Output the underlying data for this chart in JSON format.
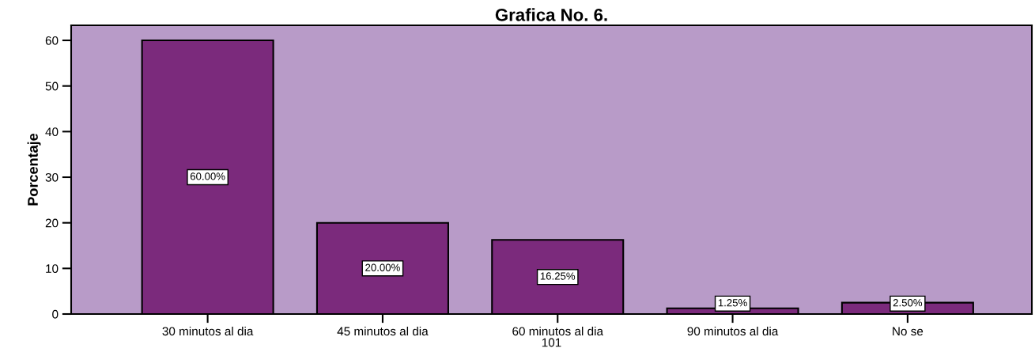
{
  "chart_data": {
    "type": "bar",
    "title": "Grafica No. 6.",
    "xlabel": "101",
    "ylabel": "Porcentaje",
    "categories": [
      "30 minutos al dia",
      "45 minutos al dia",
      "60 minutos al dia",
      "90 minutos al dia",
      "No se"
    ],
    "values": [
      60,
      20,
      16.25,
      1.25,
      2.5
    ],
    "value_labels": [
      "60.00%",
      "20.00%",
      "16.25%",
      "1.25%",
      "2.50%"
    ],
    "color": "#7b2a7c",
    "ylim": [
      0,
      63.3
    ],
    "yticks": [
      0,
      10,
      20,
      30,
      40,
      50,
      60
    ],
    "grid": false,
    "legend": false
  }
}
